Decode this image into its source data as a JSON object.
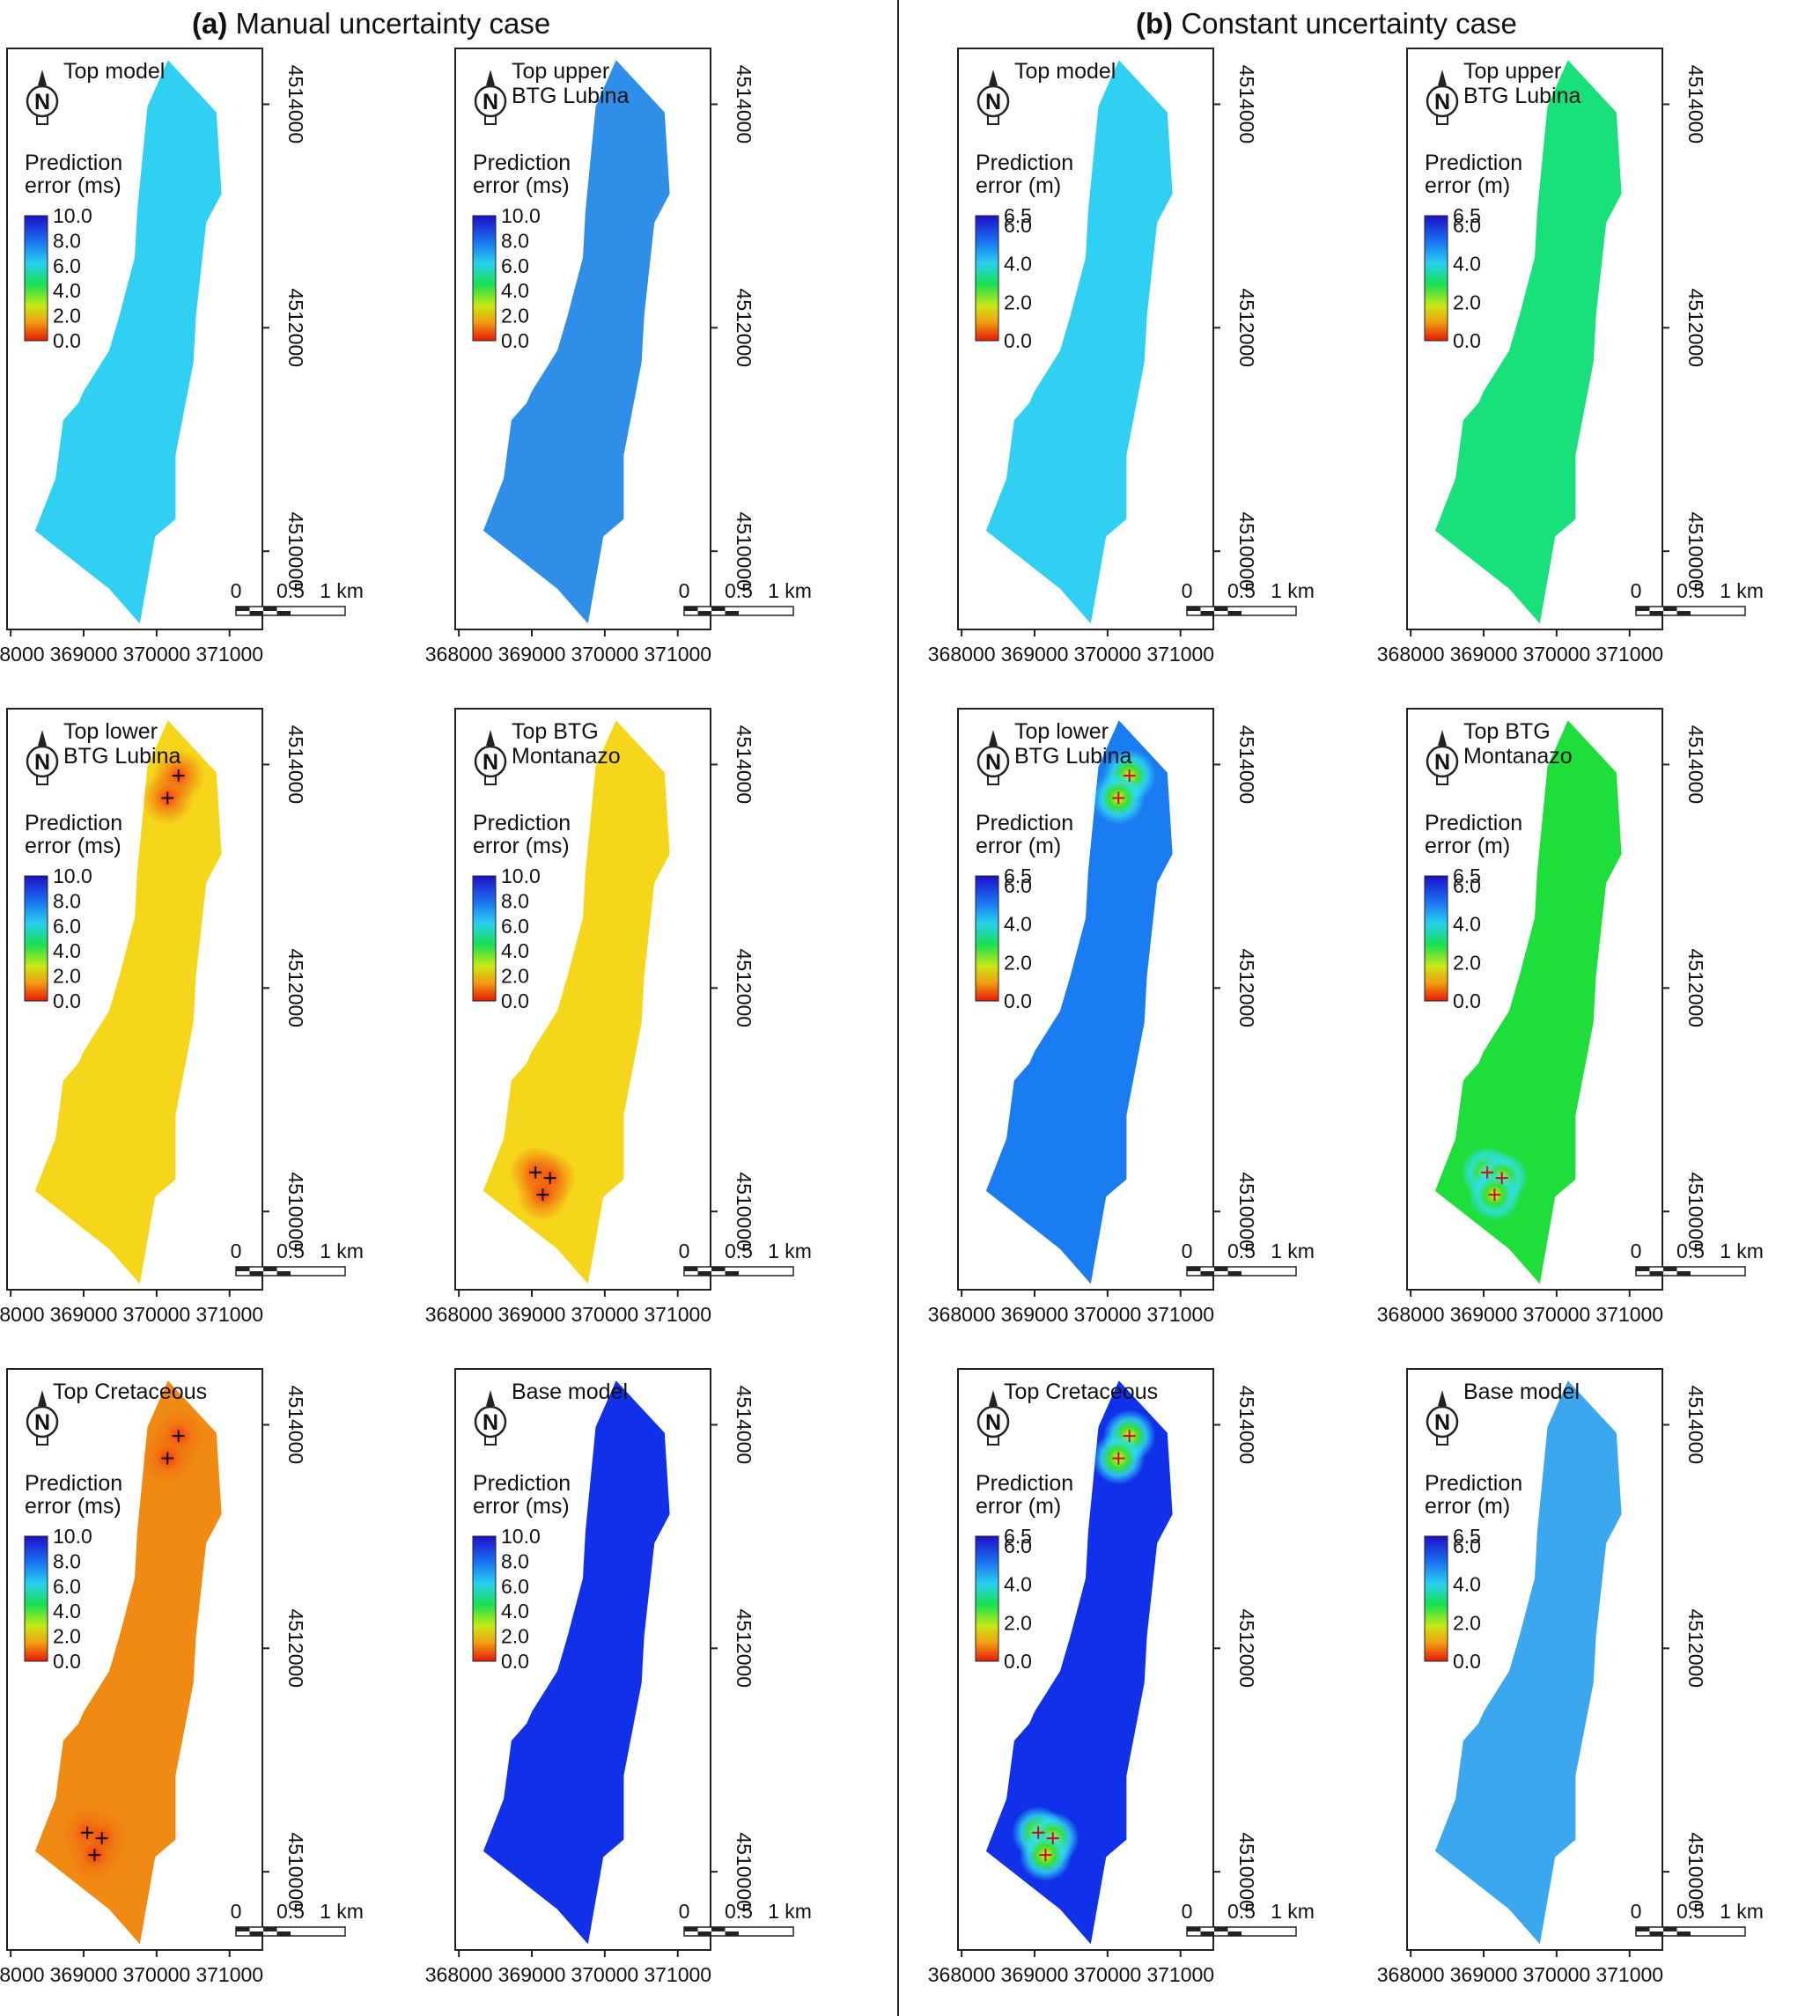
{
  "sections": [
    {
      "letter": "(a)",
      "title": "Manual uncertainty case"
    },
    {
      "letter": "(b)",
      "title": "Constant uncertainty case"
    }
  ],
  "legends": {
    "ms": {
      "label1": "Prediction",
      "label2": "error (ms)",
      "ticks": [
        "10.0",
        "8.0",
        "6.0",
        "4.0",
        "2.0",
        "0.0"
      ]
    },
    "m": {
      "label1": "Prediction",
      "label2": "error (m)",
      "ticks": [
        "6.5",
        "6.0",
        "4.0",
        "2.0",
        "0.0"
      ]
    }
  },
  "scalebar": {
    "labels": [
      "0",
      "0.5",
      "1 km"
    ]
  },
  "north_arrow": {
    "letter": "N"
  },
  "axes": {
    "x_ticks": [
      "368000",
      "369000",
      "370000",
      "371000"
    ],
    "y_ticks": [
      "4514000",
      "4512000",
      "4510000"
    ]
  },
  "colors": {
    "sky": "#2fd0f2",
    "azure": "#3aa7ee",
    "mixedblue": "#2f8ee8",
    "royal": "#1a7cf2",
    "deepblue": "#1030ea",
    "seagreen": "#18e07a",
    "green": "#1ede3c",
    "yellow": "#f6d61a",
    "orange": "#f08a12",
    "red": "#e81c0c"
  },
  "panels": [
    {
      "title": [
        "Top model"
      ],
      "unit": "ms",
      "color": "sky",
      "wells": []
    },
    {
      "title": [
        "Top upper",
        "BTG Lubina"
      ],
      "unit": "ms",
      "color": "mixedblue",
      "wells": []
    },
    {
      "title": [
        "Top lower",
        "BTG Lubina"
      ],
      "unit": "ms",
      "color": "yellow",
      "wells": [
        [
          370300,
          4513900
        ],
        [
          370150,
          4513700
        ]
      ]
    },
    {
      "title": [
        "Top BTG",
        "Montanazo"
      ],
      "unit": "ms",
      "color": "yellow",
      "wells": [
        [
          369050,
          4510350
        ],
        [
          369250,
          4510300
        ],
        [
          369150,
          4510150
        ]
      ]
    },
    {
      "title": [
        "Top Cretaceous"
      ],
      "unit": "ms",
      "color": "orange",
      "wells": [
        [
          370300,
          4513900
        ],
        [
          370150,
          4513700
        ],
        [
          369050,
          4510350
        ],
        [
          369250,
          4510300
        ],
        [
          369150,
          4510150
        ]
      ]
    },
    {
      "title": [
        "Base model"
      ],
      "unit": "ms",
      "color": "deepblue",
      "wells": []
    },
    {
      "title": [
        "Top model"
      ],
      "unit": "m",
      "color": "sky",
      "wells": []
    },
    {
      "title": [
        "Top upper",
        "BTG Lubina"
      ],
      "unit": "m",
      "color": "seagreen",
      "wells": []
    },
    {
      "title": [
        "Top lower",
        "BTG Lubina"
      ],
      "unit": "m",
      "color": "royal",
      "wells": [
        [
          370300,
          4513900
        ],
        [
          370150,
          4513700
        ]
      ]
    },
    {
      "title": [
        "Top BTG",
        "Montanazo"
      ],
      "unit": "m",
      "color": "green",
      "wells": [
        [
          369050,
          4510350
        ],
        [
          369250,
          4510300
        ],
        [
          369150,
          4510150
        ]
      ]
    },
    {
      "title": [
        "Top Cretaceous"
      ],
      "unit": "m",
      "color": "deepblue",
      "wells": [
        [
          370300,
          4513900
        ],
        [
          370150,
          4513700
        ],
        [
          369050,
          4510350
        ],
        [
          369250,
          4510300
        ],
        [
          369150,
          4510150
        ]
      ]
    },
    {
      "title": [
        "Base model"
      ],
      "unit": "m",
      "color": "azure",
      "wells": []
    }
  ]
}
